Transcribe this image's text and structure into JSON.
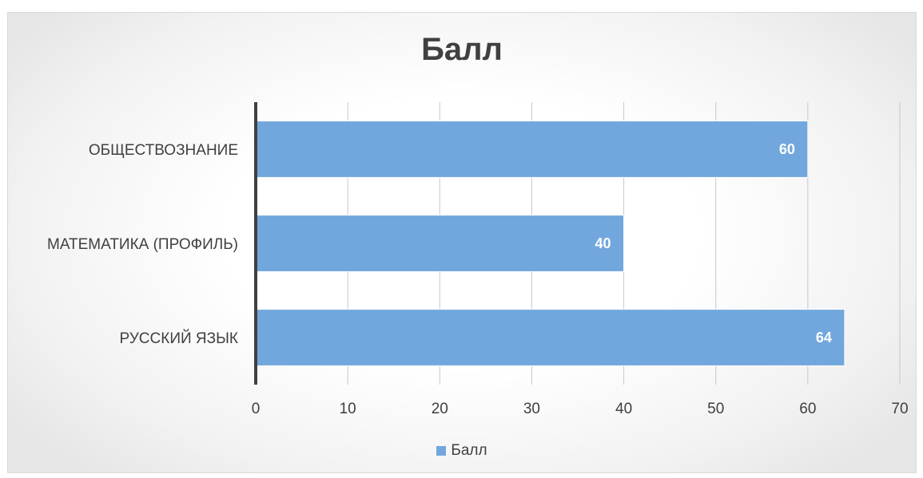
{
  "chart_data": {
    "type": "bar",
    "orientation": "horizontal",
    "title": "Балл",
    "categories": [
      "ОБЩЕСТВОЗНАНИЕ",
      "МАТЕМАТИКА (ПРОФИЛЬ)",
      "РУССКИЙ ЯЗЫК"
    ],
    "series": [
      {
        "name": "Балл",
        "values": [
          60,
          40,
          64
        ],
        "color": "#71A7DC"
      }
    ],
    "xlim": [
      0,
      70
    ],
    "xticks": [
      0,
      10,
      20,
      30,
      40,
      50,
      60,
      70
    ],
    "grid": true,
    "data_labels": true,
    "legend": "bottom"
  }
}
